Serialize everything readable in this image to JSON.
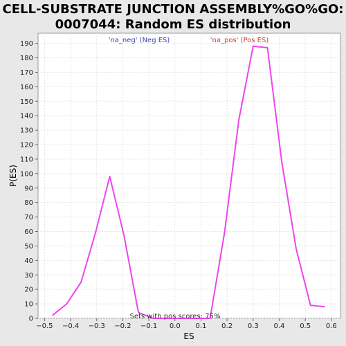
{
  "chart_data": {
    "type": "line",
    "title_lines": [
      "CELL-SUBSTRATE JUNCTION ASSEMBLY%GO%GO:",
      "0007044: Random ES distribution"
    ],
    "xlabel": "ES",
    "ylabel": "P(ES)",
    "xlim": [
      -0.525,
      0.635
    ],
    "ylim": [
      0,
      197
    ],
    "xticks": [
      -0.5,
      -0.4,
      -0.3,
      -0.2,
      -0.1,
      0.0,
      0.1,
      0.2,
      0.3,
      0.4,
      0.5,
      0.6
    ],
    "xtick_labels": [
      "−0.5",
      "−0.4",
      "−0.3",
      "−0.2",
      "−0.1",
      "0.0",
      "0.1",
      "0.2",
      "0.3",
      "0.4",
      "0.5",
      "0.6"
    ],
    "yticks": [
      0,
      10,
      20,
      30,
      40,
      50,
      60,
      70,
      80,
      90,
      100,
      110,
      120,
      130,
      140,
      150,
      160,
      170,
      180,
      190
    ],
    "grid": true,
    "series": [
      {
        "color": "#ee44ee",
        "x": [
          -0.47,
          -0.415,
          -0.36,
          -0.305,
          -0.25,
          -0.195,
          -0.14,
          -0.085,
          -0.03,
          0.025,
          0.08,
          0.135,
          0.19,
          0.245,
          0.3,
          0.355,
          0.41,
          0.465,
          0.52,
          0.575
        ],
        "y": [
          2,
          10,
          25,
          59,
          98,
          57,
          4,
          0,
          0,
          0,
          0,
          0,
          59,
          137,
          188,
          187,
          108,
          48,
          9,
          8
        ]
      }
    ],
    "legend": {
      "neg_label": "'na_neg' (Neg ES)",
      "pos_label": "'na_pos' (Pos ES)",
      "neg_color": "#4040c0",
      "pos_color": "#d04040"
    },
    "annotation": "Sets with pos scores: 75%"
  }
}
